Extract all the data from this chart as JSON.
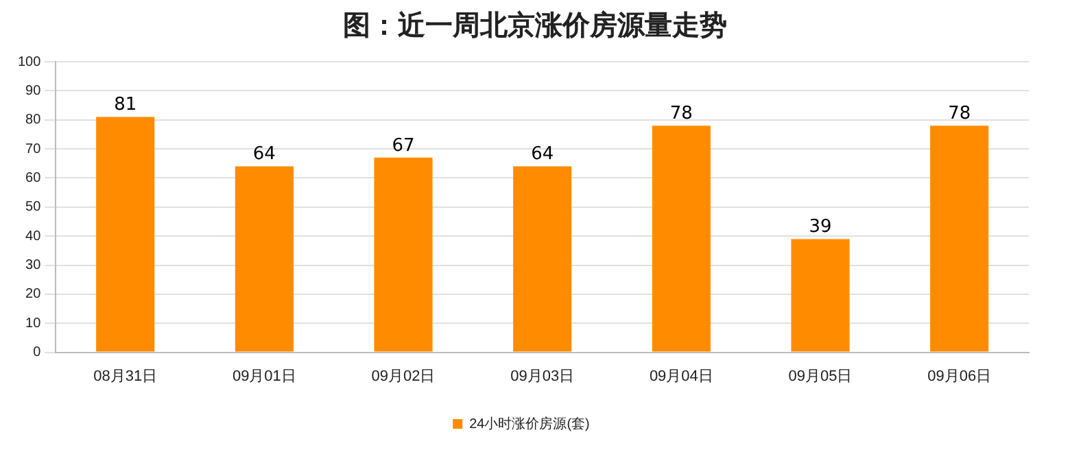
{
  "chart_data": {
    "type": "bar",
    "title": "图：近一周北京涨价房源量走势",
    "categories": [
      "08月31日",
      "09月01日",
      "09月02日",
      "09月03日",
      "09月04日",
      "09月05日",
      "09月06日"
    ],
    "series": [
      {
        "name": "24小时涨价房源(套)",
        "color": "#ff8c00",
        "values": [
          81,
          64,
          67,
          64,
          78,
          39,
          78
        ]
      }
    ],
    "ylim": [
      0,
      100
    ],
    "yticks": [
      0,
      10,
      20,
      30,
      40,
      50,
      60,
      70,
      80,
      90,
      100
    ],
    "grid": "y",
    "legend": "bottom",
    "data_labels": true
  }
}
